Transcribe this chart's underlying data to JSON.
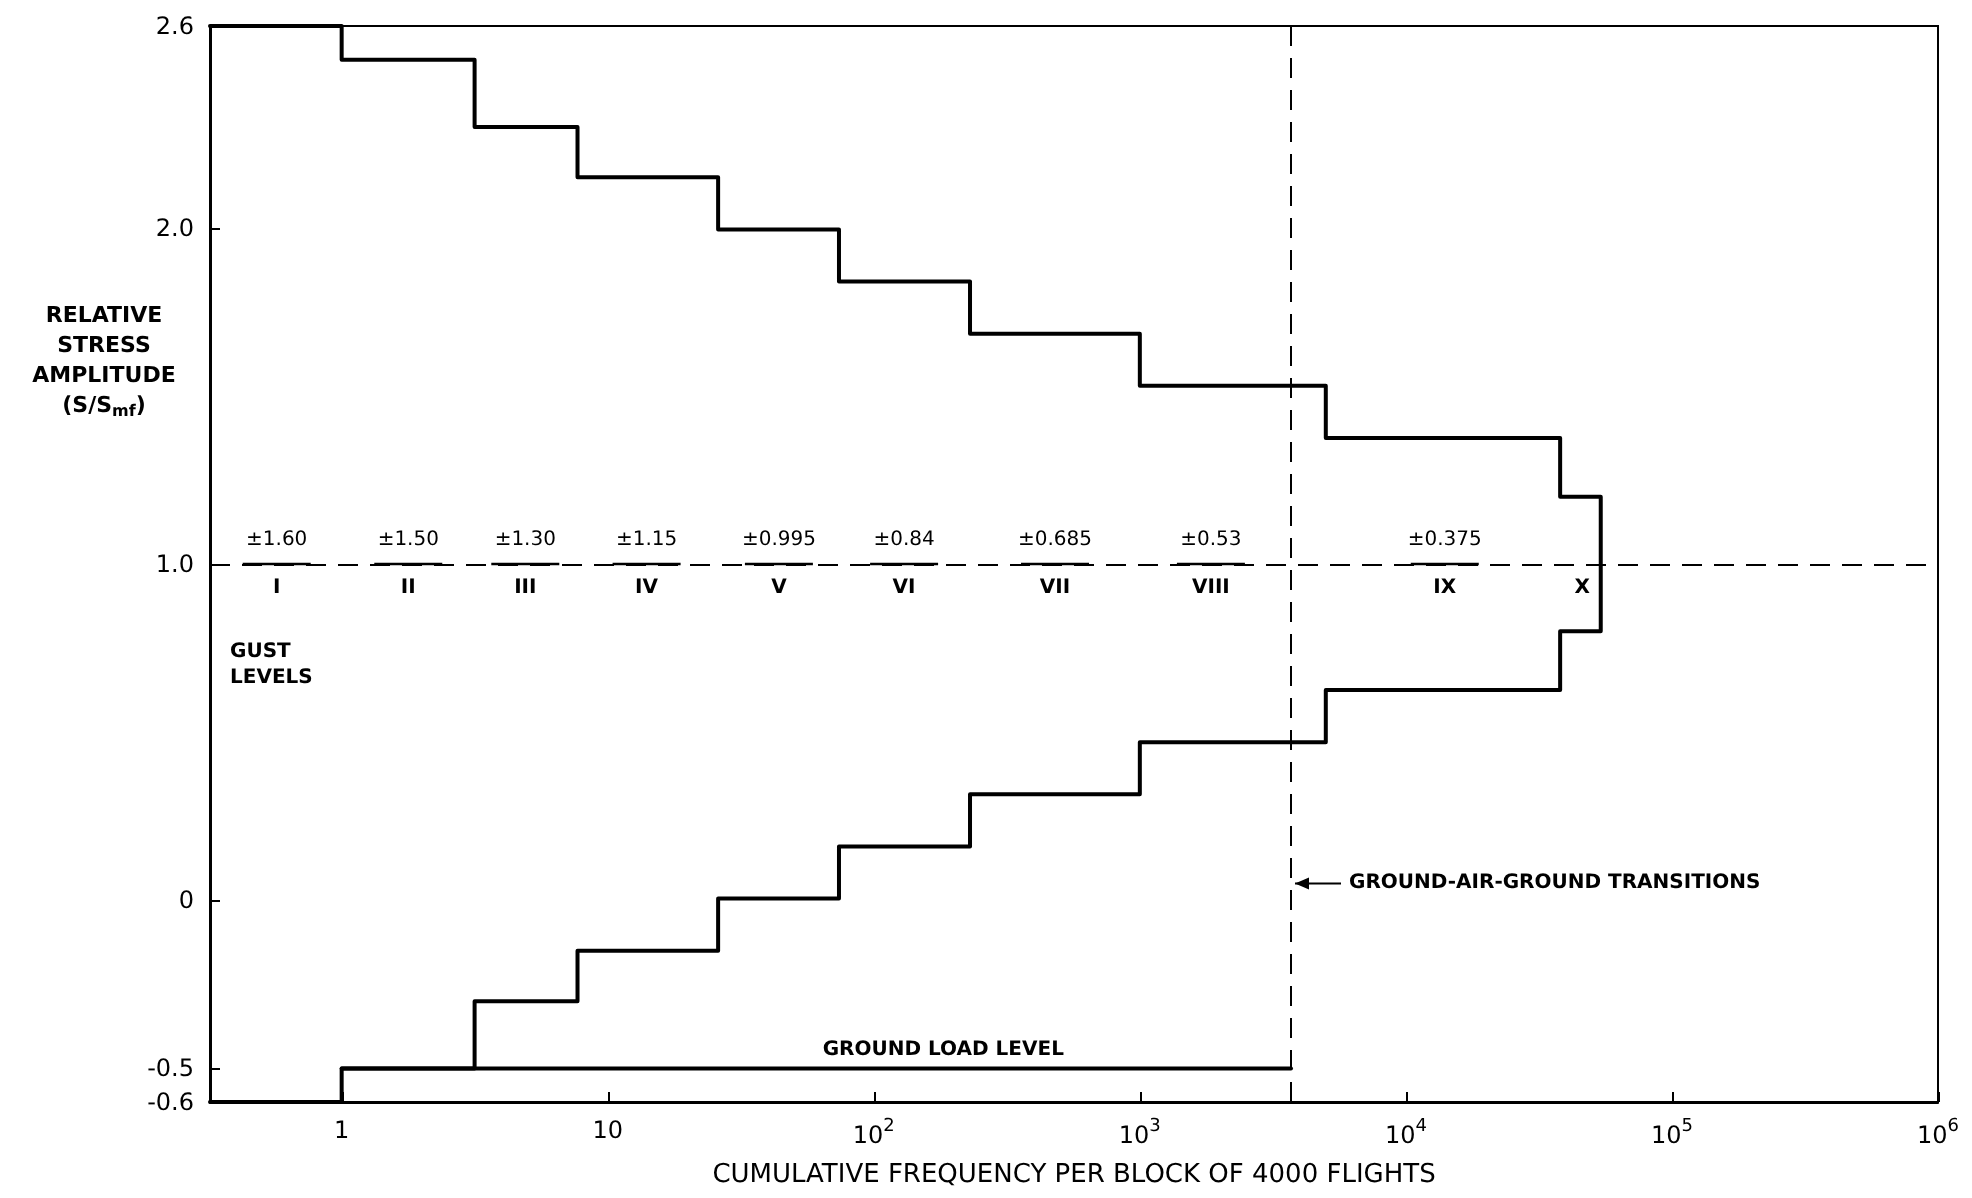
{
  "chart_data": {
    "type": "step",
    "xlabel": "CUMULATIVE FREQUENCY PER BLOCK OF 4000 FLIGHTS",
    "ylabel": "RELATIVE STRESS AMPLITUDE (S/S$_{mf}$)",
    "log": "x",
    "xlim": [
      0.32,
      1000000
    ],
    "ylim": [
      -0.6,
      2.6
    ],
    "xticks": [
      1,
      10,
      {
        "value": 100,
        "label": "10$^{2}$"
      },
      {
        "value": 1000,
        "label": "10$^{3}$"
      },
      {
        "value": 10000,
        "label": "10$^{4}$"
      },
      {
        "value": 100000,
        "label": "10$^{5}$"
      },
      {
        "value": 1000000,
        "label": "10$^{6}$"
      }
    ],
    "yticks": [
      {
        "value": -0.6,
        "label": "-0.6"
      },
      {
        "value": -0.5,
        "label": "-0.5"
      },
      {
        "value": 0,
        "label": "0"
      },
      {
        "value": 1,
        "label": "1.0"
      },
      {
        "value": 2,
        "label": "2.0"
      },
      {
        "value": 2.6,
        "label": "2.6"
      }
    ],
    "grid": false,
    "legend": false,
    "marker": "none",
    "series": [
      {
        "color": "#000000",
        "x": [
          0.32,
          1,
          3.16,
          7.7,
          26,
          74,
          230,
          1000,
          5000,
          38000,
          54000,
          38000,
          5000,
          1000,
          230,
          74,
          26,
          7.7,
          3.16,
          1,
          0.32
        ],
        "values": [
          2.6,
          2.5,
          2.3,
          2.15,
          1.995,
          1.84,
          1.685,
          1.53,
          1.375,
          1.2,
          0.8,
          0.625,
          0.47,
          0.315,
          0.16,
          0.005,
          -0.15,
          -0.3,
          -0.5,
          -0.6,
          -0.6
        ]
      },
      {
        "name": "GROUND LOAD LEVEL",
        "type": "line",
        "color": "#000000",
        "x": [
          1,
          3700
        ],
        "values": [
          -0.5,
          -0.5
        ]
      }
    ],
    "ref_lines": [
      {
        "axis": "y",
        "value": 1.0,
        "line_style": "dashed"
      },
      {
        "axis": "x",
        "value": 3700,
        "label": "GROUND-AIR-GROUND TRANSITIONS",
        "line_style": "dashed"
      }
    ],
    "annotations": [
      {
        "text": "I",
        "x": 0.57,
        "y": 1.0
      },
      {
        "text": "±1.60",
        "x": 0.57,
        "y": 1.0
      },
      "GUST LEVELS",
      {
        "text": "II",
        "x": 1.78,
        "y": 1.0
      },
      {
        "text": "±1.50",
        "x": 1.78,
        "y": 1.0
      },
      {
        "text": "III",
        "x": 4.9,
        "y": 1.0
      },
      {
        "text": "±1.30",
        "x": 4.9,
        "y": 1.0
      },
      {
        "text": "IV",
        "x": 14,
        "y": 1.0
      },
      {
        "text": "±1.15",
        "x": 14,
        "y": 1.0
      },
      {
        "text": "V",
        "x": 44,
        "y": 1.0
      },
      {
        "text": "±0.995",
        "x": 44,
        "y": 1.0
      },
      {
        "text": "VI",
        "x": 130,
        "y": 1.0
      },
      {
        "text": "±0.84",
        "x": 130,
        "y": 1.0
      },
      {
        "text": "VII",
        "x": 480,
        "y": 1.0
      },
      {
        "text": "±0.685",
        "x": 480,
        "y": 1.0
      },
      {
        "text": "VIII",
        "x": 1850,
        "y": 1.0
      },
      {
        "text": "±0.53",
        "x": 1850,
        "y": 1.0
      },
      {
        "text": "IX",
        "x": 14000,
        "y": 1.0
      },
      {
        "text": "±0.375",
        "x": 14000,
        "y": 1.0
      },
      {
        "text": "X",
        "x": 46000,
        "y": 1.0
      }
    ]
  }
}
